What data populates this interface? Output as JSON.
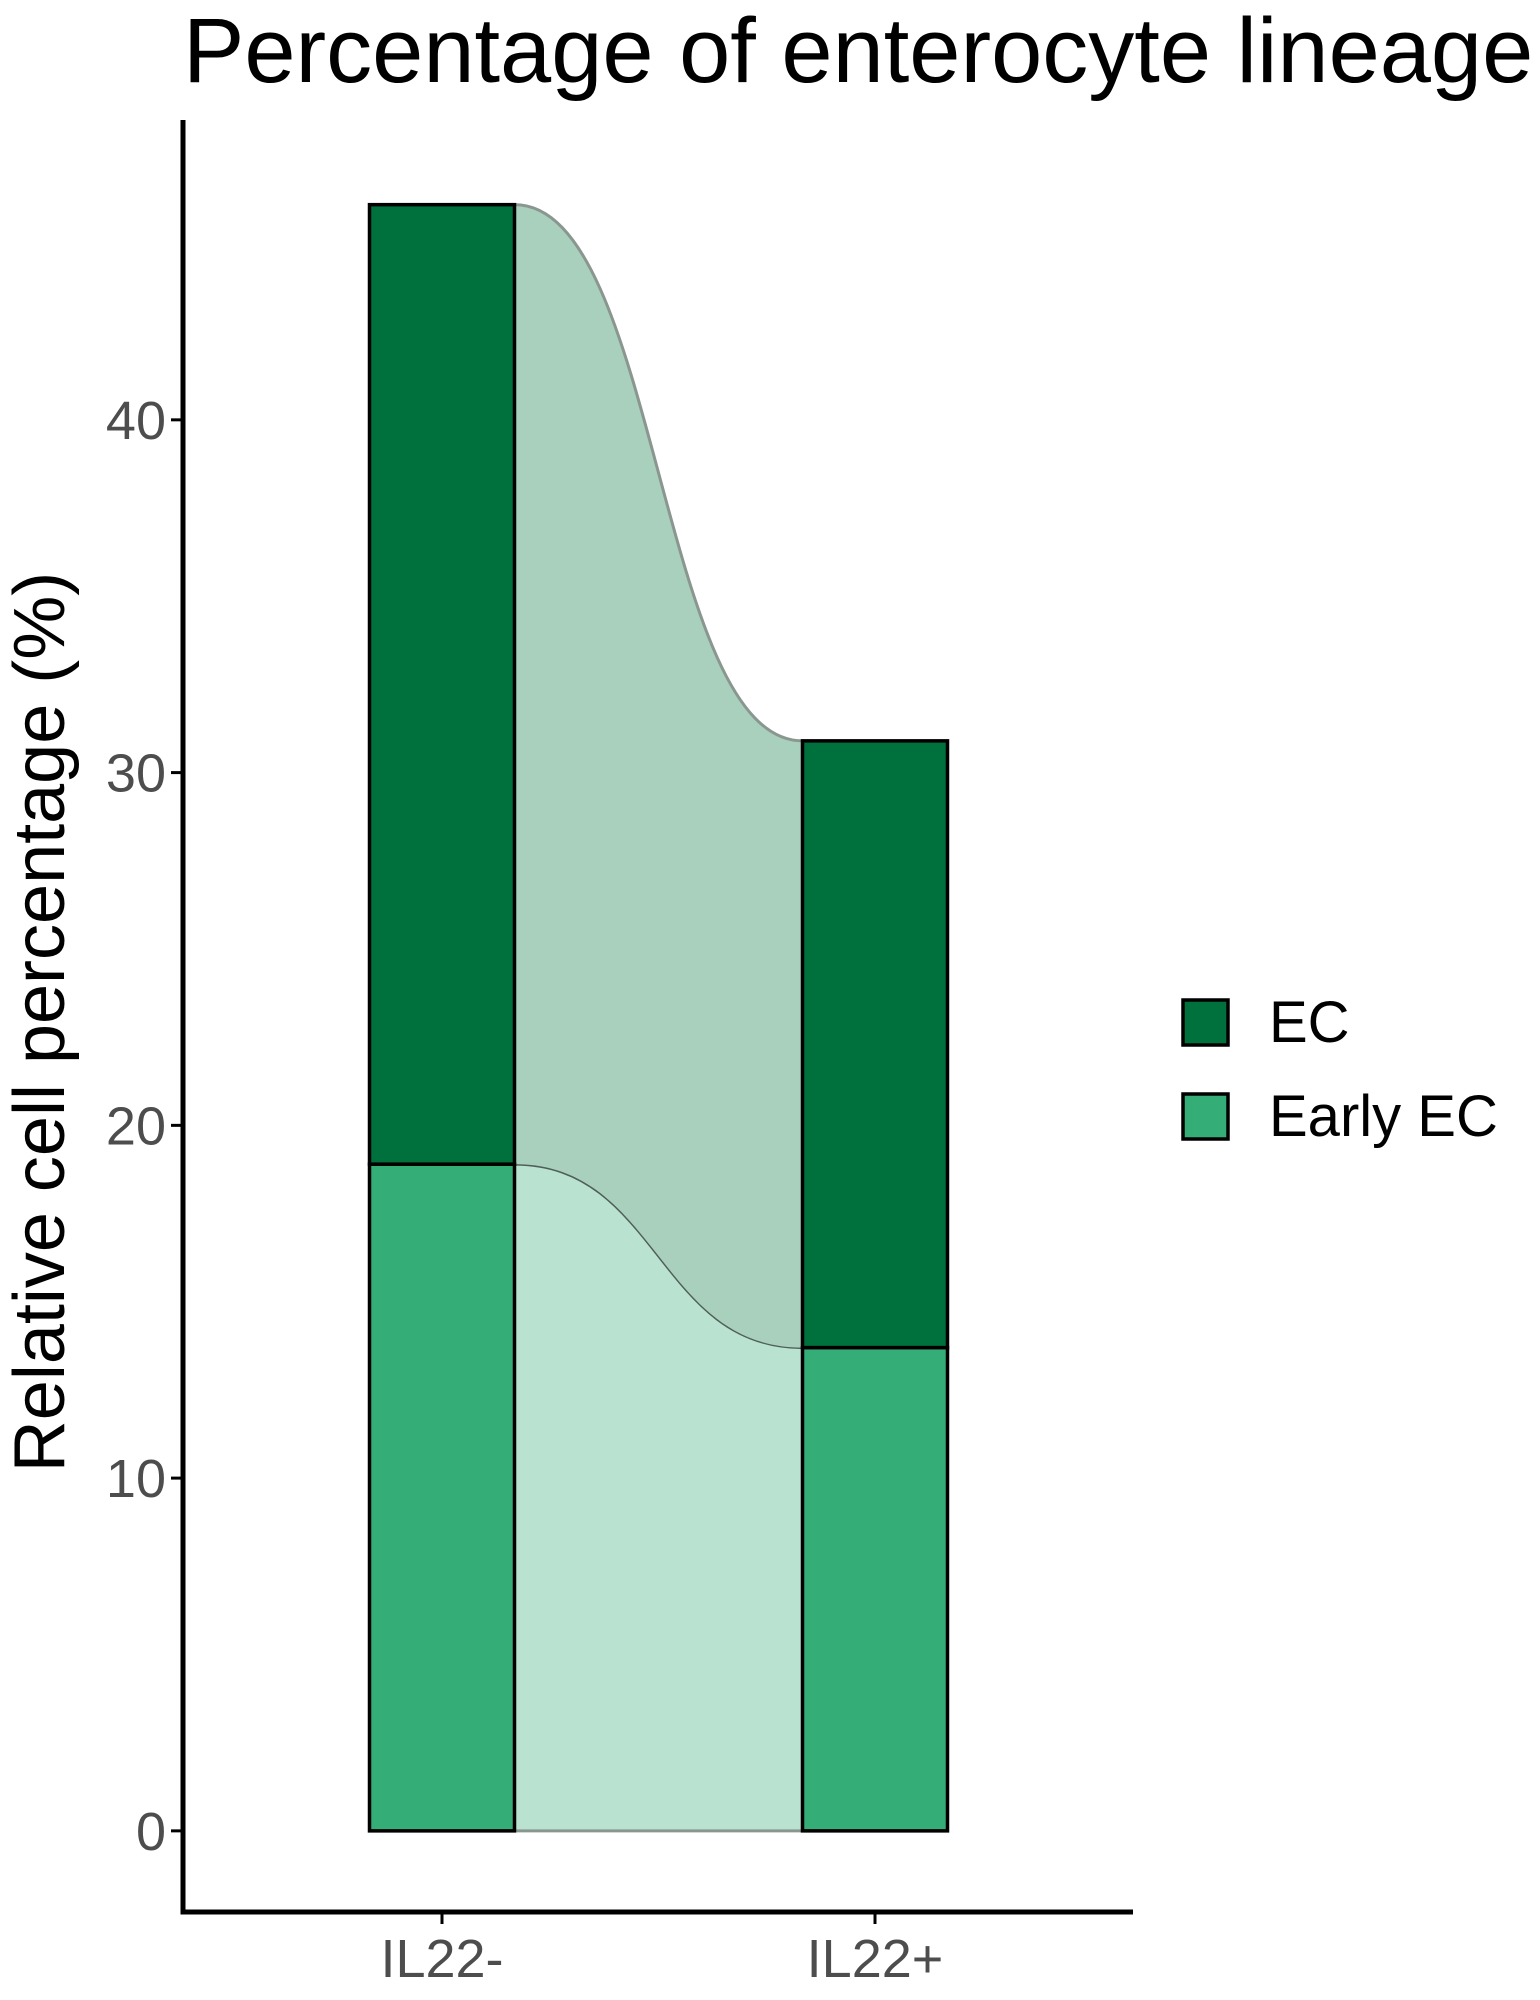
{
  "chart_data": {
    "type": "alluvial",
    "title": "Percentage of enterocyte lineage",
    "xlabel": "",
    "ylabel": "Relative cell percentage (%)",
    "categories": [
      "IL22-",
      "IL22+"
    ],
    "series": [
      {
        "name": "Early EC",
        "values": [
          18.9,
          13.7
        ],
        "color": "#35ad77",
        "flow_color": "#b9e3d0"
      },
      {
        "name": "EC",
        "values": [
          27.2,
          17.2
        ],
        "color": "#00703c",
        "flow_color": "#a9d0bd"
      }
    ],
    "ylim": [
      -2.3,
      48.5
    ],
    "y_ticks": [
      0,
      10,
      20,
      30,
      40
    ],
    "legend": {
      "position": "right",
      "items": [
        {
          "label": "EC",
          "color": "#00703c"
        },
        {
          "label": "Early EC",
          "color": "#35ad77"
        }
      ]
    },
    "grid": false
  }
}
